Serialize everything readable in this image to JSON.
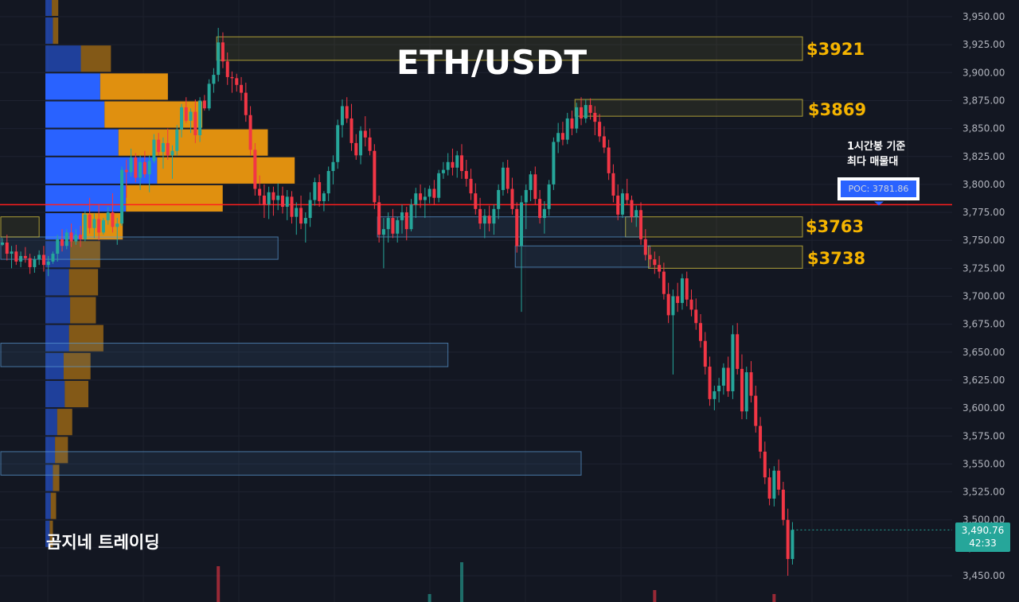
{
  "title": "ETH/USDT",
  "brand": "곰지네 트레이딩",
  "annotation": [
    "1시간봉 기준",
    "최다 매물대"
  ],
  "poc_label": "POC: 3781.86",
  "current_price": {
    "value": "3,490.76",
    "timer": "42:33"
  },
  "price_levels": [
    {
      "label": "$3921",
      "price": 3921
    },
    {
      "label": "$3869",
      "price": 3869
    },
    {
      "label": "$3763",
      "price": 3763
    },
    {
      "label": "$3738",
      "price": 3738
    }
  ],
  "colors": {
    "background": "#131722",
    "up": "#26a69a",
    "down": "#f23645",
    "poc_line": "#ff1e1e",
    "level_label": "#f5b400",
    "volume_buy": "#2962ff",
    "volume_sell": "#e0900f"
  },
  "chart_data": {
    "type": "candlestick",
    "title": "ETH/USDT",
    "timeframe_note": "1시간봉",
    "ylim": [
      3425,
      3950
    ],
    "y_ticks": [
      3450,
      3475,
      3500,
      3525,
      3550,
      3575,
      3600,
      3625,
      3650,
      3675,
      3700,
      3725,
      3750,
      3775,
      3800,
      3825,
      3850,
      3875,
      3900,
      3925,
      3950
    ],
    "y_tick_labels": [
      "3,450.00",
      "3,475.00",
      "3,500.00",
      "3,525.00",
      "3,550.00",
      "3,575.00",
      "3,600.00",
      "3,625.00",
      "3,650.00",
      "3,675.00",
      "3,700.00",
      "3,725.00",
      "3,750.00",
      "3,775.00",
      "3,800.00",
      "3,825.00",
      "3,850.00",
      "3,875.00",
      "3,900.00",
      "3,925.00",
      "3,950.00"
    ],
    "poc": 3781.86,
    "candles": [
      [
        3746,
        3752,
        3745,
        3748
      ],
      [
        3748,
        3755,
        3732,
        3738
      ],
      [
        3738,
        3745,
        3725,
        3740
      ],
      [
        3740,
        3746,
        3728,
        3731
      ],
      [
        3731,
        3740,
        3726,
        3736
      ],
      [
        3736,
        3744,
        3730,
        3734
      ],
      [
        3734,
        3738,
        3720,
        3726
      ],
      [
        3726,
        3736,
        3721,
        3733
      ],
      [
        3733,
        3741,
        3728,
        3737
      ],
      [
        3737,
        3745,
        3722,
        3728
      ],
      [
        3728,
        3736,
        3718,
        3731
      ],
      [
        3731,
        3740,
        3729,
        3738
      ],
      [
        3738,
        3755,
        3731,
        3751
      ],
      [
        3751,
        3760,
        3740,
        3745
      ],
      [
        3745,
        3760,
        3742,
        3757
      ],
      [
        3757,
        3765,
        3744,
        3749
      ],
      [
        3749,
        3760,
        3746,
        3755
      ],
      [
        3755,
        3763,
        3744,
        3751
      ],
      [
        3751,
        3777,
        3749,
        3773
      ],
      [
        3773,
        3788,
        3756,
        3761
      ],
      [
        3761,
        3774,
        3752,
        3769
      ],
      [
        3769,
        3782,
        3750,
        3757
      ],
      [
        3757,
        3770,
        3755,
        3768
      ],
      [
        3768,
        3780,
        3764,
        3775
      ],
      [
        3775,
        3792,
        3757,
        3762
      ],
      [
        3762,
        3770,
        3746,
        3765
      ],
      [
        3765,
        3816,
        3763,
        3813
      ],
      [
        3813,
        3822,
        3788,
        3811
      ],
      [
        3811,
        3832,
        3807,
        3824
      ],
      [
        3824,
        3828,
        3802,
        3806
      ],
      [
        3806,
        3826,
        3795,
        3820
      ],
      [
        3820,
        3830,
        3806,
        3809
      ],
      [
        3809,
        3826,
        3793,
        3821
      ],
      [
        3821,
        3845,
        3819,
        3840
      ],
      [
        3840,
        3846,
        3826,
        3829
      ],
      [
        3829,
        3842,
        3814,
        3837
      ],
      [
        3837,
        3850,
        3822,
        3826
      ],
      [
        3826,
        3835,
        3805,
        3830
      ],
      [
        3830,
        3853,
        3826,
        3849
      ],
      [
        3849,
        3872,
        3842,
        3869
      ],
      [
        3869,
        3878,
        3855,
        3857
      ],
      [
        3857,
        3868,
        3846,
        3865
      ],
      [
        3865,
        3876,
        3837,
        3844
      ],
      [
        3844,
        3878,
        3838,
        3875
      ],
      [
        3875,
        3880,
        3866,
        3868
      ],
      [
        3868,
        3894,
        3866,
        3890
      ],
      [
        3890,
        3904,
        3882,
        3898
      ],
      [
        3898,
        3940,
        3892,
        3927
      ],
      [
        3927,
        3936,
        3904,
        3910
      ],
      [
        3910,
        3918,
        3889,
        3896
      ],
      [
        3896,
        3901,
        3882,
        3895
      ],
      [
        3895,
        3899,
        3883,
        3889
      ],
      [
        3889,
        3896,
        3875,
        3882
      ],
      [
        3882,
        3891,
        3856,
        3862
      ],
      [
        3862,
        3870,
        3826,
        3831
      ],
      [
        3831,
        3837,
        3790,
        3796
      ],
      [
        3796,
        3808,
        3782,
        3790
      ],
      [
        3790,
        3800,
        3770,
        3782
      ],
      [
        3782,
        3798,
        3769,
        3793
      ],
      [
        3793,
        3798,
        3772,
        3786
      ],
      [
        3786,
        3801,
        3777,
        3790
      ],
      [
        3790,
        3798,
        3774,
        3780
      ],
      [
        3780,
        3795,
        3768,
        3789
      ],
      [
        3789,
        3794,
        3765,
        3771
      ],
      [
        3771,
        3784,
        3755,
        3779
      ],
      [
        3779,
        3790,
        3760,
        3765
      ],
      [
        3765,
        3775,
        3748,
        3770
      ],
      [
        3770,
        3793,
        3762,
        3786
      ],
      [
        3786,
        3806,
        3781,
        3802
      ],
      [
        3802,
        3809,
        3780,
        3785
      ],
      [
        3785,
        3794,
        3776,
        3792
      ],
      [
        3792,
        3816,
        3785,
        3812
      ],
      [
        3812,
        3826,
        3800,
        3820
      ],
      [
        3820,
        3858,
        3814,
        3853
      ],
      [
        3853,
        3876,
        3842,
        3870
      ],
      [
        3870,
        3878,
        3855,
        3859
      ],
      [
        3859,
        3872,
        3830,
        3837
      ],
      [
        3837,
        3845,
        3822,
        3826
      ],
      [
        3826,
        3852,
        3818,
        3848
      ],
      [
        3848,
        3861,
        3834,
        3842
      ],
      [
        3842,
        3850,
        3826,
        3830
      ],
      [
        3830,
        3836,
        3778,
        3784
      ],
      [
        3784,
        3790,
        3748,
        3755
      ],
      [
        3755,
        3770,
        3725,
        3760
      ],
      [
        3760,
        3775,
        3748,
        3770
      ],
      [
        3770,
        3778,
        3752,
        3756
      ],
      [
        3756,
        3771,
        3748,
        3768
      ],
      [
        3768,
        3782,
        3756,
        3775
      ],
      [
        3775,
        3780,
        3750,
        3760
      ],
      [
        3760,
        3787,
        3758,
        3782
      ],
      [
        3782,
        3797,
        3770,
        3792
      ],
      [
        3792,
        3800,
        3779,
        3786
      ],
      [
        3786,
        3797,
        3770,
        3789
      ],
      [
        3789,
        3799,
        3783,
        3796
      ],
      [
        3796,
        3804,
        3782,
        3788
      ],
      [
        3788,
        3813,
        3784,
        3810
      ],
      [
        3810,
        3820,
        3805,
        3813
      ],
      [
        3813,
        3828,
        3808,
        3820
      ],
      [
        3820,
        3832,
        3808,
        3815
      ],
      [
        3815,
        3830,
        3806,
        3826
      ],
      [
        3826,
        3836,
        3805,
        3812
      ],
      [
        3812,
        3822,
        3798,
        3805
      ],
      [
        3805,
        3814,
        3786,
        3792
      ],
      [
        3792,
        3801,
        3773,
        3778
      ],
      [
        3778,
        3788,
        3760,
        3765
      ],
      [
        3765,
        3778,
        3752,
        3772
      ],
      [
        3772,
        3781,
        3758,
        3765
      ],
      [
        3765,
        3782,
        3755,
        3778
      ],
      [
        3778,
        3800,
        3769,
        3795
      ],
      [
        3795,
        3820,
        3790,
        3815
      ],
      [
        3815,
        3822,
        3792,
        3796
      ],
      [
        3796,
        3806,
        3773,
        3778
      ],
      [
        3778,
        3784,
        3739,
        3745
      ],
      [
        3745,
        3790,
        3686,
        3784
      ],
      [
        3784,
        3800,
        3760,
        3795
      ],
      [
        3795,
        3812,
        3785,
        3809
      ],
      [
        3809,
        3816,
        3782,
        3787
      ],
      [
        3787,
        3795,
        3765,
        3770
      ],
      [
        3770,
        3785,
        3756,
        3778
      ],
      [
        3778,
        3804,
        3772,
        3800
      ],
      [
        3800,
        3842,
        3795,
        3838
      ],
      [
        3838,
        3855,
        3828,
        3846
      ],
      [
        3846,
        3856,
        3835,
        3840
      ],
      [
        3840,
        3864,
        3836,
        3859
      ],
      [
        3859,
        3866,
        3844,
        3850
      ],
      [
        3850,
        3873,
        3846,
        3869
      ],
      [
        3869,
        3878,
        3853,
        3859
      ],
      [
        3859,
        3876,
        3855,
        3871
      ],
      [
        3871,
        3877,
        3858,
        3864
      ],
      [
        3864,
        3870,
        3844,
        3856
      ],
      [
        3856,
        3863,
        3838,
        3843
      ],
      [
        3843,
        3852,
        3828,
        3833
      ],
      [
        3833,
        3840,
        3804,
        3810
      ],
      [
        3810,
        3818,
        3784,
        3790
      ],
      [
        3790,
        3800,
        3768,
        3773
      ],
      [
        3773,
        3796,
        3770,
        3792
      ],
      [
        3792,
        3805,
        3782,
        3786
      ],
      [
        3786,
        3790,
        3766,
        3771
      ],
      [
        3771,
        3781,
        3762,
        3777
      ],
      [
        3777,
        3784,
        3746,
        3751
      ],
      [
        3751,
        3760,
        3732,
        3737
      ],
      [
        3737,
        3744,
        3726,
        3733
      ],
      [
        3733,
        3740,
        3720,
        3728
      ],
      [
        3728,
        3736,
        3716,
        3722
      ],
      [
        3722,
        3730,
        3697,
        3702
      ],
      [
        3702,
        3712,
        3676,
        3683
      ],
      [
        3683,
        3706,
        3630,
        3700
      ],
      [
        3700,
        3712,
        3686,
        3694
      ],
      [
        3694,
        3720,
        3688,
        3716
      ],
      [
        3716,
        3722,
        3691,
        3697
      ],
      [
        3697,
        3706,
        3682,
        3688
      ],
      [
        3688,
        3698,
        3670,
        3676
      ],
      [
        3676,
        3684,
        3654,
        3660
      ],
      [
        3660,
        3668,
        3630,
        3637
      ],
      [
        3637,
        3646,
        3602,
        3608
      ],
      [
        3608,
        3620,
        3598,
        3615
      ],
      [
        3615,
        3627,
        3605,
        3620
      ],
      [
        3620,
        3640,
        3612,
        3636
      ],
      [
        3636,
        3646,
        3610,
        3615
      ],
      [
        3615,
        3674,
        3608,
        3666
      ],
      [
        3666,
        3676,
        3630,
        3635
      ],
      [
        3635,
        3648,
        3590,
        3597
      ],
      [
        3597,
        3637,
        3590,
        3632
      ],
      [
        3632,
        3642,
        3605,
        3611
      ],
      [
        3611,
        3620,
        3578,
        3584
      ],
      [
        3584,
        3592,
        3555,
        3561
      ],
      [
        3561,
        3570,
        3532,
        3538
      ],
      [
        3538,
        3546,
        3513,
        3519
      ],
      [
        3519,
        3548,
        3512,
        3544
      ],
      [
        3544,
        3554,
        3522,
        3527
      ],
      [
        3527,
        3534,
        3495,
        3500
      ],
      [
        3500,
        3510,
        3450,
        3465
      ],
      [
        3465,
        3498,
        3460,
        3491
      ]
    ],
    "volume_profile": [
      {
        "price_low": 3475,
        "price_high": 3500,
        "buy": 4,
        "sell": 3
      },
      {
        "price_low": 3500,
        "price_high": 3525,
        "buy": 5,
        "sell": 5
      },
      {
        "price_low": 3525,
        "price_high": 3550,
        "buy": 7,
        "sell": 6
      },
      {
        "price_low": 3550,
        "price_high": 3575,
        "buy": 9,
        "sell": 12
      },
      {
        "price_low": 3575,
        "price_high": 3600,
        "buy": 11,
        "sell": 14
      },
      {
        "price_low": 3600,
        "price_high": 3625,
        "buy": 18,
        "sell": 22
      },
      {
        "price_low": 3625,
        "price_high": 3650,
        "buy": 17,
        "sell": 25
      },
      {
        "price_low": 3650,
        "price_high": 3675,
        "buy": 22,
        "sell": 32
      },
      {
        "price_low": 3675,
        "price_high": 3700,
        "buy": 23,
        "sell": 24
      },
      {
        "price_low": 3700,
        "price_high": 3725,
        "buy": 22,
        "sell": 27
      },
      {
        "price_low": 3725,
        "price_high": 3750,
        "buy": 23,
        "sell": 28
      },
      {
        "price_low": 3750,
        "price_high": 3775,
        "buy": 34,
        "sell": 38
      },
      {
        "price_low": 3775,
        "price_high": 3800,
        "buy": 75,
        "sell": 90
      },
      {
        "price_low": 3800,
        "price_high": 3825,
        "buy": 104,
        "sell": 128
      },
      {
        "price_low": 3825,
        "price_high": 3850,
        "buy": 68,
        "sell": 139
      },
      {
        "price_low": 3850,
        "price_high": 3875,
        "buy": 55,
        "sell": 91
      },
      {
        "price_low": 3875,
        "price_high": 3900,
        "buy": 51,
        "sell": 63
      },
      {
        "price_low": 3900,
        "price_high": 3925,
        "buy": 33,
        "sell": 28
      },
      {
        "price_low": 3925,
        "price_high": 3950,
        "buy": 7,
        "sell": 5
      },
      {
        "price_low": 3950,
        "price_high": 3975,
        "buy": 6,
        "sell": 6
      },
      {
        "price_low": 3975,
        "price_high": 4000,
        "buy": 6,
        "sell": 9
      }
    ],
    "volume_bars": [
      {
        "index": 47,
        "volume": 0.9,
        "up": false
      },
      {
        "index": 93,
        "volume": 0.2,
        "up": true
      },
      {
        "index": 100,
        "volume": 1.0,
        "up": true
      },
      {
        "index": 142,
        "volume": 0.3,
        "up": false
      },
      {
        "index": 168,
        "volume": 0.2,
        "up": false
      }
    ],
    "zones": [
      {
        "kind": "resistance",
        "price_top": 3932,
        "price_bottom": 3911,
        "start_index": 47,
        "color": "#ffeb3b"
      },
      {
        "kind": "resistance",
        "price_top": 3876,
        "price_bottom": 3861,
        "start_index": 125,
        "color": "#ffeb3b"
      },
      {
        "kind": "resistance",
        "price_top": 3771,
        "price_bottom": 3753,
        "start_index": 136,
        "color": "#ffeb3b"
      },
      {
        "kind": "resistance",
        "price_top": 3745,
        "price_bottom": 3725,
        "start_index": 141,
        "color": "#ffeb3b"
      },
      {
        "kind": "support",
        "price_top": 3771,
        "price_bottom": 3753,
        "start_index": 82,
        "end_index": 139,
        "color": "#5b9bd5"
      },
      {
        "kind": "support",
        "price_top": 3753,
        "price_bottom": 3733,
        "start_index": 0,
        "end_index": 60,
        "color": "#5b9bd5"
      },
      {
        "kind": "support",
        "price_top": 3745,
        "price_bottom": 3726,
        "start_index": 112,
        "end_index": 141,
        "color": "#5b9bd5"
      },
      {
        "kind": "support",
        "price_top": 3658,
        "price_bottom": 3637,
        "start_index": 0,
        "end_index": 97,
        "color": "#5b9bd5"
      },
      {
        "kind": "support",
        "price_top": 3561,
        "price_bottom": 3540,
        "start_index": 0,
        "end_index": 126,
        "color": "#5b9bd5"
      },
      {
        "kind": "support",
        "price_top": 3771,
        "price_bottom": 3753,
        "start_index": 0,
        "end_index": 8,
        "color": "#ffeb3b"
      }
    ]
  }
}
